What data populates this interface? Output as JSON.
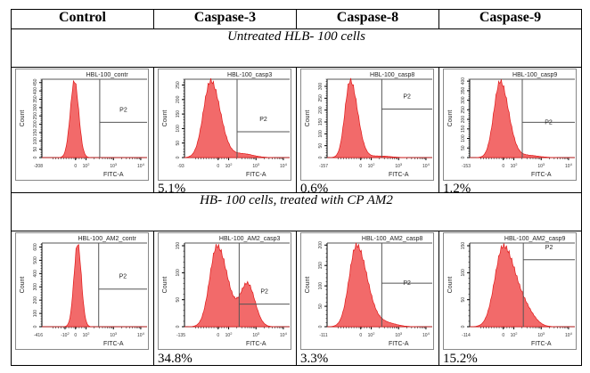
{
  "columns": [
    "Control",
    "Caspase-3",
    "Caspase-8",
    "Caspase-9"
  ],
  "sections": [
    {
      "label": "Untreated  HLB- 100 cells"
    },
    {
      "label": "HB- 100  cells, treated with CP AM2"
    }
  ],
  "colors": {
    "fill": "#f26a6a",
    "stroke": "#e01818",
    "gate": "#555555",
    "axis": "#000000"
  },
  "chart_data": [
    {
      "type": "area",
      "title": "HBL-100_contr",
      "xlabel": "FITC-A",
      "ylabel": "Count",
      "x_scale": "biexponential",
      "xmin_label": "-208",
      "x_ticks": [
        "0",
        "10^2",
        "10^3",
        "10^4"
      ],
      "y_ticks": [
        0,
        50,
        100,
        150,
        200,
        250,
        300,
        350,
        400,
        450
      ],
      "ylim": [
        0,
        470
      ],
      "gate": {
        "name": "P2",
        "start_x": "~10^2"
      },
      "peak_x": "~0",
      "peak_count": 460,
      "percent_label": ""
    },
    {
      "type": "area",
      "title": "HBL-100_casp3",
      "xlabel": "FITC-A",
      "ylabel": "Count",
      "x_scale": "biexponential",
      "xmin_label": "-93",
      "x_ticks": [
        "0",
        "10^2",
        "10^3",
        "10^4"
      ],
      "y_ticks": [
        0,
        50,
        100,
        150,
        200,
        250
      ],
      "ylim": [
        0,
        270
      ],
      "gate": {
        "name": "P2",
        "start_x": "~10^2"
      },
      "peak_x": "~50",
      "peak_count": 265,
      "percent_label": "5.1%"
    },
    {
      "type": "area",
      "title": "HBL-100_casp8",
      "xlabel": "FITC-A",
      "ylabel": "Count",
      "x_scale": "biexponential",
      "xmin_label": "-157",
      "x_ticks": [
        "0",
        "10^2",
        "10^3",
        "10^4"
      ],
      "y_ticks": [
        0,
        50,
        100,
        150,
        200,
        250,
        300
      ],
      "ylim": [
        0,
        330
      ],
      "gate": {
        "name": "P2",
        "start_x": "~10^2"
      },
      "peak_x": "~20",
      "peak_count": 325,
      "percent_label": "0.6%"
    },
    {
      "type": "area",
      "title": "HBL-100_casp9",
      "xlabel": "FITC-A",
      "ylabel": "Count",
      "x_scale": "biexponential",
      "xmin_label": "-153",
      "x_ticks": [
        "0",
        "10^2",
        "10^3",
        "10^4"
      ],
      "y_ticks": [
        0,
        50,
        100,
        150,
        200,
        250,
        300,
        350,
        400
      ],
      "ylim": [
        0,
        410
      ],
      "gate": {
        "name": "P2",
        "start_x": "~10^2"
      },
      "peak_x": "~40",
      "peak_count": 400,
      "percent_label": "1.2%"
    },
    {
      "type": "area",
      "title": "HBL-100_AM2_contr",
      "xlabel": "FITC-A",
      "ylabel": "Count",
      "x_scale": "biexponential",
      "xmin_label": "-416",
      "x_ticks": [
        "-10^2",
        "0",
        "10^2",
        "10^3",
        "10^4"
      ],
      "y_ticks": [
        0,
        100,
        200,
        300,
        400,
        500,
        600
      ],
      "ylim": [
        0,
        630
      ],
      "gate": {
        "name": "P2",
        "start_x": "~10^2"
      },
      "peak_x": "~0",
      "peak_count": 625,
      "percent_label": ""
    },
    {
      "type": "area",
      "title": "HBL-100_AM2_casp3",
      "xlabel": "FITC-A",
      "ylabel": "Count",
      "x_scale": "biexponential",
      "xmin_label": "-135",
      "x_ticks": [
        "0",
        "10^2",
        "10^3",
        "10^4"
      ],
      "y_ticks": [
        0,
        50,
        100,
        150
      ],
      "ylim": [
        0,
        155
      ],
      "gate": {
        "name": "P2",
        "start_x": "~10^2"
      },
      "peak_x": "~50",
      "peak_count": 150,
      "second_peak_x": "~500",
      "second_peak_count": 78,
      "percent_label": "34.8%"
    },
    {
      "type": "area",
      "title": "HBL-100_AM2_casp8",
      "xlabel": "FITC-A",
      "ylabel": "Count",
      "x_scale": "biexponential",
      "xmin_label": "-111",
      "x_ticks": [
        "0",
        "10^2",
        "10^3",
        "10^4"
      ],
      "y_ticks": [
        0,
        50,
        100,
        150,
        200
      ],
      "ylim": [
        0,
        205
      ],
      "gate": {
        "name": "P2",
        "start_x": "~10^2"
      },
      "peak_x": "~30",
      "peak_count": 200,
      "percent_label": "3.3%"
    },
    {
      "type": "area",
      "title": "HBL-100_AM2_casp9",
      "xlabel": "FITC-A",
      "ylabel": "Count",
      "x_scale": "biexponential",
      "xmin_label": "-114",
      "x_ticks": [
        "0",
        "10^2",
        "10^3",
        "10^4"
      ],
      "y_ticks": [
        0,
        50,
        100,
        150
      ],
      "ylim": [
        0,
        155
      ],
      "gate": {
        "name": "P2",
        "start_x": "~10^2"
      },
      "peak_x": "~60",
      "peak_count": 150,
      "percent_label": "15.2%"
    }
  ]
}
